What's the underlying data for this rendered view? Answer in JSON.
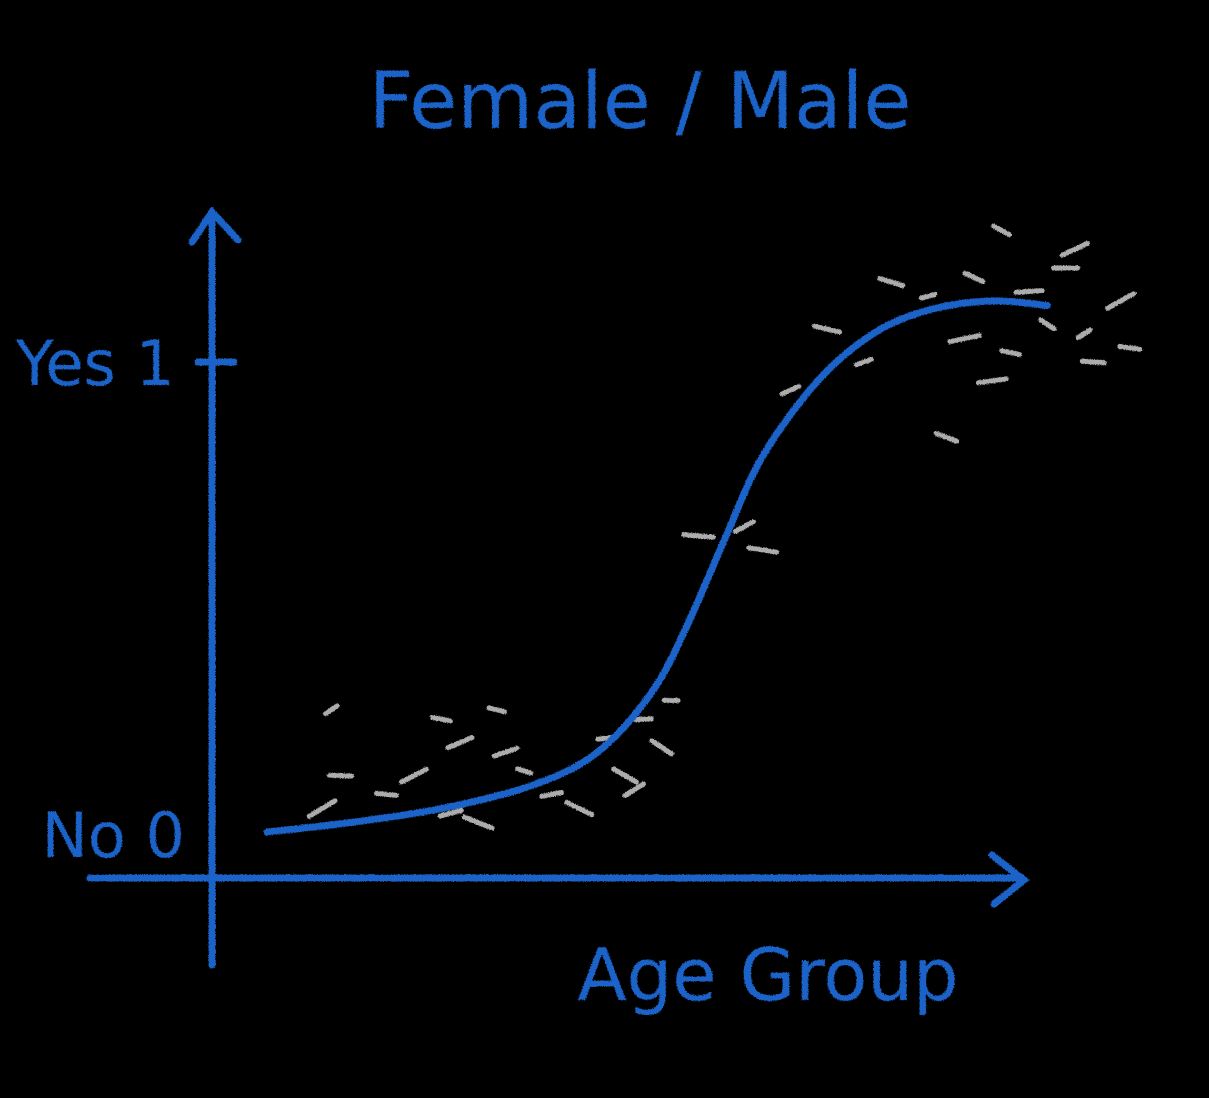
{
  "colors": {
    "background": "#000000",
    "chalk_blue": "#1a63c9",
    "chalk_white": "#d8d8d8"
  },
  "chart_data": {
    "type": "scatter",
    "title": "Female / Male",
    "xlabel": "Age Group",
    "ylabel": "",
    "y_ticks": [
      {
        "value": 1,
        "label": "Yes 1"
      },
      {
        "value": 0,
        "label": "No 0"
      }
    ],
    "xlim": [
      0,
      10
    ],
    "ylim": [
      -0.1,
      1.25
    ],
    "grid": false,
    "legend": "none",
    "curve": {
      "type": "logistic",
      "x": [
        0.6,
        1.5,
        2.5,
        3.5,
        4.2,
        4.8,
        5.2,
        5.6,
        6.0,
        6.6,
        7.2,
        7.8,
        8.5,
        9.1
      ],
      "y": [
        0.0,
        0.02,
        0.05,
        0.1,
        0.17,
        0.3,
        0.45,
        0.63,
        0.8,
        0.96,
        1.06,
        1.11,
        1.13,
        1.12
      ]
    },
    "points": [
      {
        "x": 1.3,
        "y": 0.26
      },
      {
        "x": 1.4,
        "y": 0.12
      },
      {
        "x": 1.2,
        "y": 0.05
      },
      {
        "x": 1.9,
        "y": 0.08
      },
      {
        "x": 2.2,
        "y": 0.12
      },
      {
        "x": 2.5,
        "y": 0.24
      },
      {
        "x": 2.7,
        "y": 0.19
      },
      {
        "x": 3.1,
        "y": 0.26
      },
      {
        "x": 3.2,
        "y": 0.17
      },
      {
        "x": 3.4,
        "y": 0.13
      },
      {
        "x": 2.6,
        "y": 0.04
      },
      {
        "x": 2.9,
        "y": 0.02
      },
      {
        "x": 3.7,
        "y": 0.08
      },
      {
        "x": 4.0,
        "y": 0.05
      },
      {
        "x": 4.3,
        "y": 0.2
      },
      {
        "x": 4.5,
        "y": 0.12
      },
      {
        "x": 4.7,
        "y": 0.24
      },
      {
        "x": 4.9,
        "y": 0.18
      },
      {
        "x": 5.0,
        "y": 0.28
      },
      {
        "x": 4.6,
        "y": 0.09
      },
      {
        "x": 5.3,
        "y": 0.63
      },
      {
        "x": 5.8,
        "y": 0.65
      },
      {
        "x": 6.0,
        "y": 0.6
      },
      {
        "x": 6.3,
        "y": 0.94
      },
      {
        "x": 6.7,
        "y": 1.07
      },
      {
        "x": 7.1,
        "y": 1.0
      },
      {
        "x": 7.4,
        "y": 1.17
      },
      {
        "x": 7.8,
        "y": 1.14
      },
      {
        "x": 8.0,
        "y": 0.84
      },
      {
        "x": 8.2,
        "y": 1.05
      },
      {
        "x": 8.3,
        "y": 1.18
      },
      {
        "x": 8.5,
        "y": 0.96
      },
      {
        "x": 8.6,
        "y": 1.28
      },
      {
        "x": 8.9,
        "y": 1.15
      },
      {
        "x": 9.1,
        "y": 1.08
      },
      {
        "x": 9.3,
        "y": 1.2
      },
      {
        "x": 9.5,
        "y": 1.06
      },
      {
        "x": 9.6,
        "y": 1.0
      },
      {
        "x": 9.9,
        "y": 1.13
      },
      {
        "x": 10.0,
        "y": 1.03
      },
      {
        "x": 9.4,
        "y": 1.24
      },
      {
        "x": 8.7,
        "y": 1.02
      }
    ]
  }
}
